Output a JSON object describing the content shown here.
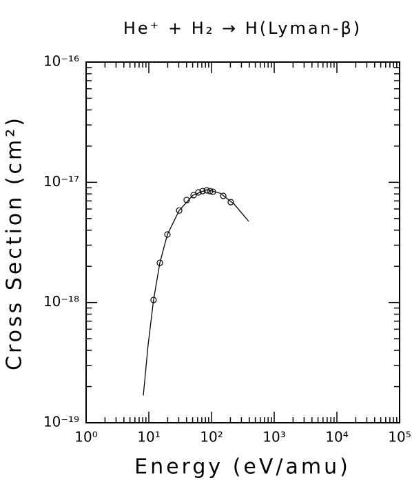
{
  "chart_data": {
    "type": "line",
    "title": "He⁺ + H₂ → H(Lyman-β)",
    "x_label": "Energy (eV/amu)",
    "y_label": "Cross Section (cm²)",
    "log_x": true,
    "log_y": true,
    "xlim": [
      1,
      100000
    ],
    "ylim": [
      1e-19,
      1e-16
    ],
    "xticks": [
      {
        "value": 1,
        "label": "10⁰"
      },
      {
        "value": 10,
        "label": "10¹"
      },
      {
        "value": 100,
        "label": "10²"
      },
      {
        "value": 1000,
        "label": "10³"
      },
      {
        "value": 10000,
        "label": "10⁴"
      },
      {
        "value": 100000,
        "label": "10⁵"
      }
    ],
    "yticks": [
      {
        "value": 1e-19,
        "label": "10⁻¹⁹"
      },
      {
        "value": 1e-18,
        "label": "10⁻¹⁸"
      },
      {
        "value": 1e-17,
        "label": "10⁻¹⁷"
      },
      {
        "value": 1e-16,
        "label": "10⁻¹⁶"
      }
    ],
    "series": [
      {
        "color": "#000000",
        "line": true,
        "marker": "none",
        "x": [
          8.17,
          9.75,
          11.9,
          15,
          19.8,
          30.5,
          50.5,
          83.8,
          138.6,
          230,
          392
        ],
        "values": [
          1.69e-19,
          4.45e-19,
          1.05e-18,
          2.14e-18,
          3.68e-18,
          5.83e-18,
          7.8e-18,
          8.68e-18,
          8.1e-18,
          6.58e-18,
          4.73e-18
        ]
      },
      {
        "color": "#000000",
        "line": false,
        "marker": "circle",
        "x": [
          11.9,
          15,
          19.8,
          30.5,
          40.2,
          51.8,
          61.8,
          72,
          83.8,
          95,
          105,
          154,
          203
        ],
        "values": [
          1.05e-18,
          2.14e-18,
          3.68e-18,
          5.83e-18,
          7.13e-18,
          7.82e-18,
          8.24e-18,
          8.45e-18,
          8.57e-18,
          8.45e-18,
          8.34e-18,
          7.71e-18,
          6.84e-18
        ]
      }
    ]
  }
}
